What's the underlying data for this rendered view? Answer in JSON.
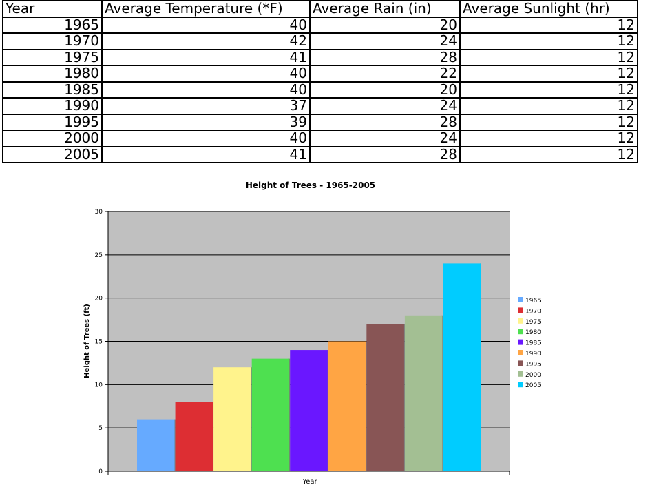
{
  "table": {
    "headers": [
      "Year",
      "Average Temperature (*F)",
      "Average Rain (in)",
      "Average Sunlight (hr)"
    ],
    "rows": [
      [
        "1965",
        "40",
        "20",
        "12"
      ],
      [
        "1970",
        "42",
        "24",
        "12"
      ],
      [
        "1975",
        "41",
        "28",
        "12"
      ],
      [
        "1980",
        "40",
        "22",
        "12"
      ],
      [
        "1985",
        "40",
        "20",
        "12"
      ],
      [
        "1990",
        "37",
        "24",
        "12"
      ],
      [
        "1995",
        "39",
        "28",
        "12"
      ],
      [
        "2000",
        "40",
        "24",
        "12"
      ],
      [
        "2005",
        "41",
        "28",
        "12"
      ]
    ]
  },
  "chart_data": {
    "type": "bar",
    "title": "Height of Trees - 1965-2005",
    "xlabel": "Year",
    "ylabel": "Height of Trees (ft)",
    "ylim": [
      0,
      30
    ],
    "yticks": [
      0,
      5,
      10,
      15,
      20,
      25,
      30
    ],
    "grid": true,
    "legend_position": "right",
    "plot_background": "#c0c0c0",
    "series": [
      {
        "name": "1965",
        "value": 6,
        "color": "#66aaff"
      },
      {
        "name": "1970",
        "value": 8,
        "color": "#dd2e33"
      },
      {
        "name": "1975",
        "value": 12,
        "color": "#fff38c"
      },
      {
        "name": "1980",
        "value": 13,
        "color": "#4ee050"
      },
      {
        "name": "1985",
        "value": 14,
        "color": "#6a17ff"
      },
      {
        "name": "1990",
        "value": 15,
        "color": "#ffa544"
      },
      {
        "name": "1995",
        "value": 17,
        "color": "#885555"
      },
      {
        "name": "2000",
        "value": 18,
        "color": "#a3bf93"
      },
      {
        "name": "2005",
        "value": 24,
        "color": "#00ccff"
      }
    ]
  }
}
